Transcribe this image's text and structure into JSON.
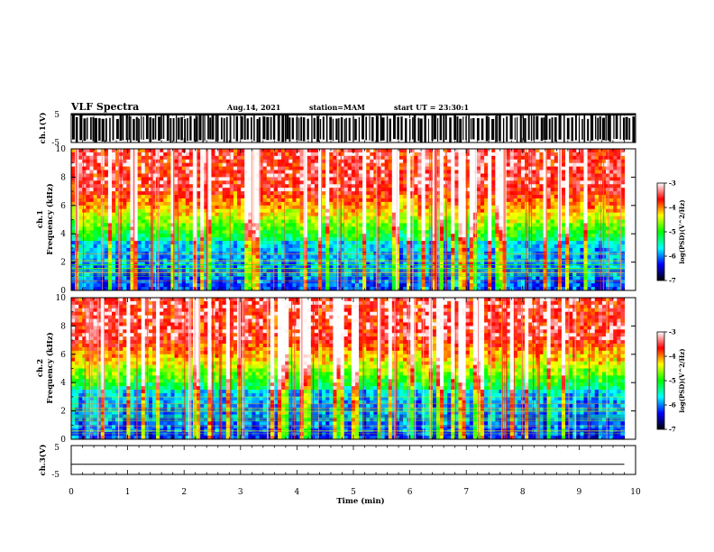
{
  "header": {
    "title": "VLF Spectra",
    "date": "Aug.14, 2021",
    "station": "station=MAM",
    "start": "start UT = 23:30:1"
  },
  "chart_data": [
    {
      "type": "line",
      "name": "ch1-waveform",
      "ylabel": "ch.1(V)",
      "ytick_labels": [
        "5",
        "-5"
      ],
      "ylim": [
        -5,
        5
      ],
      "xlim": [
        0,
        10
      ],
      "note": "saturated waveform, strong impulsive activity"
    },
    {
      "type": "heatmap",
      "name": "ch1-spectrogram",
      "ylabel": [
        "ch.1",
        "Frequency (kHz)"
      ],
      "ylim": [
        0,
        10
      ],
      "yticks": [
        0,
        2,
        4,
        6,
        8,
        10
      ],
      "xlim": [
        0,
        10
      ],
      "data_end_min": 9.8,
      "colorbar": {
        "label": "log(PSD)(V^2/Hz)",
        "ticks": [
          -3,
          -4,
          -5,
          -6,
          -7
        ],
        "range": [
          -7,
          -3
        ],
        "colors": [
          "#000000",
          "#0000ff",
          "#00ffff",
          "#00ff00",
          "#ffff00",
          "#ff0000",
          "#ffffff"
        ]
      }
    },
    {
      "type": "heatmap",
      "name": "ch2-spectrogram",
      "ylabel": [
        "ch.2",
        "Frequency (kHz)"
      ],
      "ylim": [
        0,
        10
      ],
      "yticks": [
        0,
        2,
        4,
        6,
        8,
        10
      ],
      "xlim": [
        0,
        10
      ],
      "data_end_min": 9.8,
      "colorbar": {
        "label": "log(PSD)(V^2/Hz)",
        "ticks": [
          -3,
          -4,
          -5,
          -6,
          -7
        ],
        "range": [
          -7,
          -3
        ],
        "colors": [
          "#000000",
          "#0000ff",
          "#00ffff",
          "#00ff00",
          "#ffff00",
          "#ff0000",
          "#ffffff"
        ]
      }
    },
    {
      "type": "line",
      "name": "ch3-waveform",
      "ylabel": "ch.3(V)",
      "ytick_labels": [
        "5",
        "-5"
      ],
      "ylim": [
        -5,
        5
      ],
      "xlim": [
        0,
        10
      ],
      "x": [
        0,
        9.8
      ],
      "y": [
        -1.5,
        -1.5
      ]
    }
  ],
  "xaxis": {
    "label": "Time (min)",
    "ticks": [
      0,
      1,
      2,
      3,
      4,
      5,
      6,
      7,
      8,
      9,
      10
    ]
  }
}
